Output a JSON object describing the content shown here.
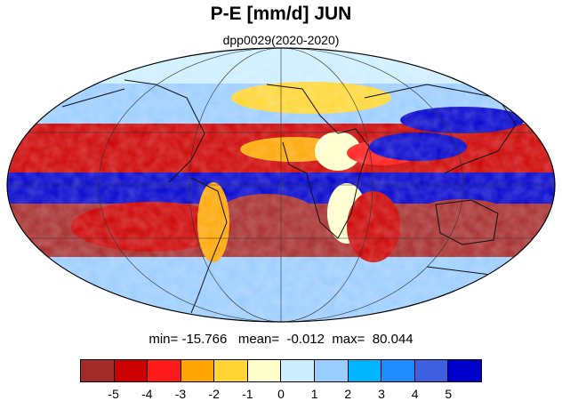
{
  "header": {
    "title": "P-E [mm/d] JUN",
    "subtitle": "dpp0029(2020-2020)"
  },
  "map": {
    "projection": "mollweide",
    "grid": "graticule",
    "variable_bands": [
      {
        "lat_band": "polar",
        "class": 6
      },
      {
        "lat_band": "midlat_north",
        "class": 7
      },
      {
        "lat_band": "north_subtropics",
        "class": 1
      },
      {
        "lat_band": "itcz",
        "class": 11
      },
      {
        "lat_band": "south_subtropics",
        "class": 0
      },
      {
        "lat_band": "southern_ocean",
        "class": 7
      }
    ]
  },
  "stats": {
    "text": "min= -15.766   mean=  -0.012  max=  80.044"
  },
  "colorbar": {
    "colors": [
      "#a52a2a",
      "#cc0000",
      "#ff1a1a",
      "#ffa500",
      "#ffd633",
      "#ffffcc",
      "#cceeff",
      "#99ccff",
      "#00b4ff",
      "#1e8cff",
      "#3d5fe0",
      "#0000cc"
    ],
    "tick_labels": [
      "-5",
      "-4",
      "-3",
      "-2",
      "-1",
      "0",
      "1",
      "2",
      "3",
      "4",
      "5"
    ]
  }
}
